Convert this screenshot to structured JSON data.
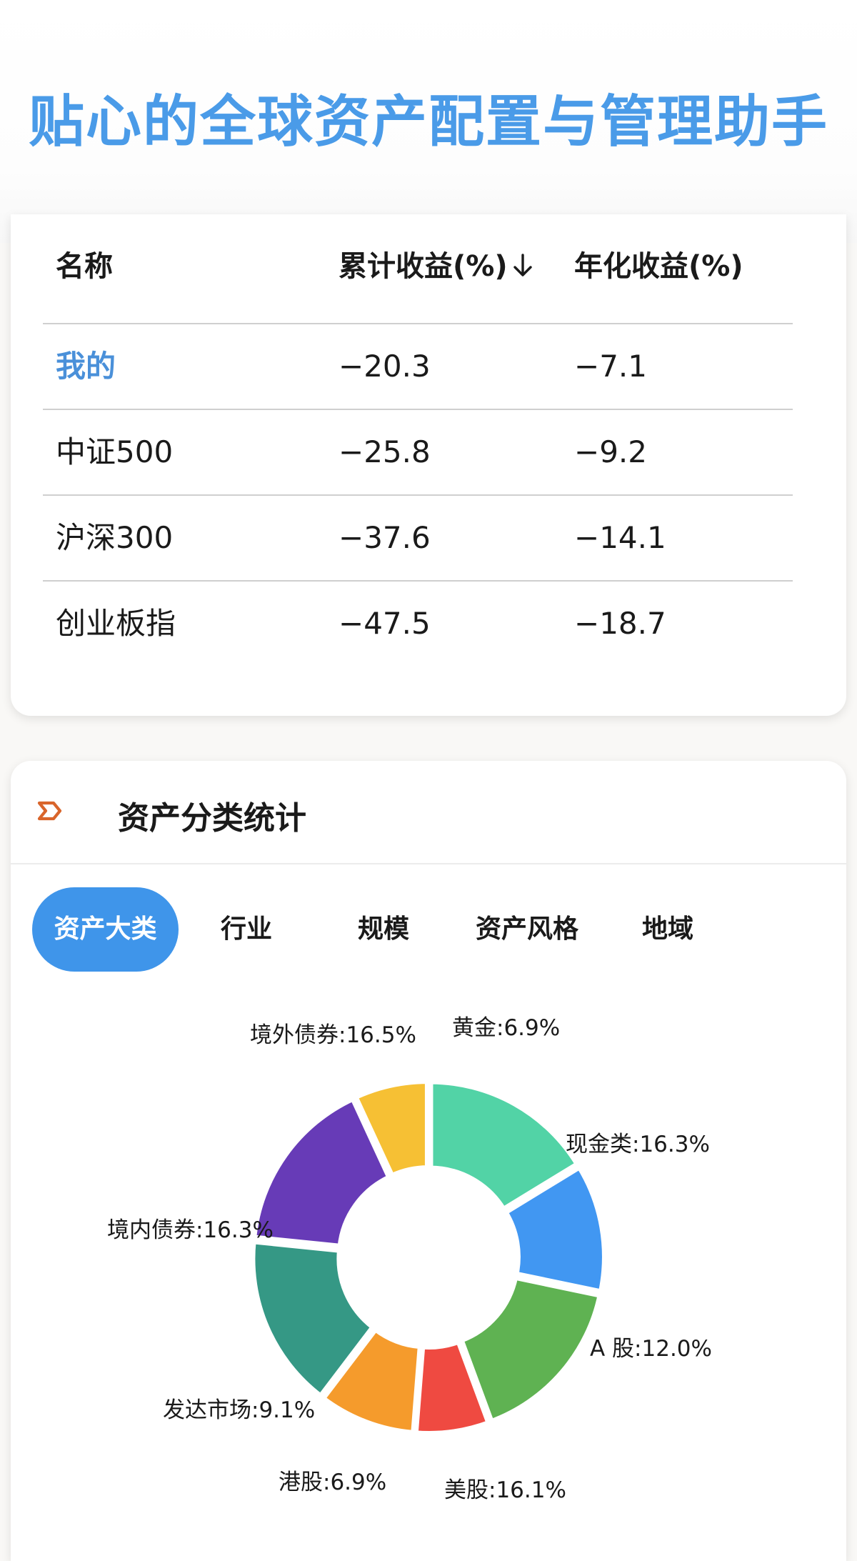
{
  "hero": {
    "title": "贴心的全球资产配置与管理助手"
  },
  "returns_table": {
    "headers": {
      "name": "名称",
      "cumulative": "累计收益(%)",
      "annualized": "年化收益(%)"
    },
    "rows": [
      {
        "name": "我的",
        "cumulative": "-20.3",
        "annualized": "-7.1"
      },
      {
        "name": "中证500",
        "cumulative": "-25.8",
        "annualized": "-9.2"
      },
      {
        "name": "沪深300",
        "cumulative": "-37.6",
        "annualized": "-14.1"
      },
      {
        "name": "创业板指",
        "cumulative": "-47.5",
        "annualized": "-18.7"
      }
    ]
  },
  "stats": {
    "title": "资产分类统计",
    "tabs": [
      "资产大类",
      "行业",
      "规模",
      "资产风格",
      "地域"
    ],
    "active_tab": "资产大类"
  },
  "colors": {
    "accent": "#3f95ea",
    "title_blue": "#4a9be8",
    "highlight_blue": "#4a90d9",
    "icon_orange": "#d9652b"
  },
  "chart_data": {
    "type": "pie",
    "donut": true,
    "slices": [
      {
        "label": "现金类:16.3%",
        "value": 16.3,
        "color": "#52d3a6"
      },
      {
        "label": "A 股:12.0%",
        "value": 12.0,
        "color": "#4197f2"
      },
      {
        "label": "美股:16.1%",
        "value": 16.1,
        "color": "#5fb252"
      },
      {
        "label": "港股:6.9%",
        "value": 6.9,
        "color": "#ef4a41"
      },
      {
        "label": "发达市场:9.1%",
        "value": 9.1,
        "color": "#f59b2c"
      },
      {
        "label": "境内债券:16.3%",
        "value": 16.3,
        "color": "#359885"
      },
      {
        "label": "境外债券:16.5%",
        "value": 16.5,
        "color": "#673bb7"
      },
      {
        "label": "黄金:6.9%",
        "value": 6.9,
        "color": "#f6c034"
      }
    ]
  }
}
